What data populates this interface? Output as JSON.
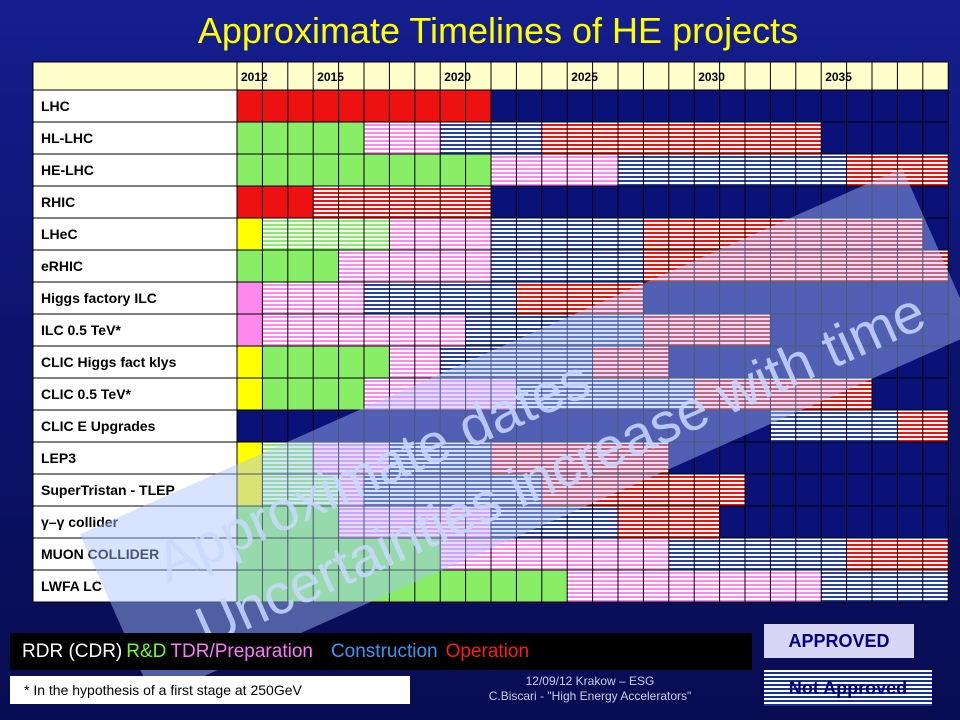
{
  "page": {
    "title": "Approximate Timelines of HE projects",
    "watermark_lines": [
      "Approximate dates",
      "Uncertainties increase with time"
    ],
    "footer_lines": [
      "12/09/12 Krakow – ESG",
      "C.Biscari - \"High Energy Accelerators\""
    ],
    "footnote": "* In the hypothesis of a first stage at 250GeV",
    "badges": {
      "approved": "APPROVED",
      "not_approved": "Not Approved"
    }
  },
  "legend": [
    {
      "label": "RDR (CDR)",
      "color": "#ffffff"
    },
    {
      "label": "R&D",
      "color": "#66ff33"
    },
    {
      "label": "TDR/Preparation",
      "color": "#ff77ff"
    },
    {
      "label": "Construction",
      "color": "#3399ff"
    },
    {
      "label": "Operation",
      "color": "#ff1a1a"
    }
  ],
  "chart_data": {
    "type": "table",
    "year_labels": [
      "2012",
      "2015",
      "2020",
      "2025",
      "2030",
      "2035"
    ],
    "year_start": 2012,
    "year_end": 2039,
    "phase_colors": {
      "cdr": "#ffff00",
      "rd": "#88ee66",
      "tdr": "#ff88ee",
      "construction": "#4455cc",
      "operation": "#ee1111"
    },
    "rows": [
      {
        "label": "LHC",
        "segments": [
          {
            "phase": "operation",
            "start": 2012,
            "end": 2022,
            "approved": true
          }
        ]
      },
      {
        "label": "HL-LHC",
        "segments": [
          {
            "phase": "rd",
            "start": 2012,
            "end": 2017,
            "approved": true
          },
          {
            "phase": "tdr",
            "start": 2017,
            "end": 2020,
            "approved": false
          },
          {
            "phase": "construction",
            "start": 2020,
            "end": 2024,
            "approved": false
          },
          {
            "phase": "operation",
            "start": 2024,
            "end": 2035,
            "approved": false
          }
        ]
      },
      {
        "label": "HE-LHC",
        "segments": [
          {
            "phase": "rd",
            "start": 2012,
            "end": 2022,
            "approved": true
          },
          {
            "phase": "tdr",
            "start": 2022,
            "end": 2027,
            "approved": false
          },
          {
            "phase": "construction",
            "start": 2027,
            "end": 2036,
            "approved": false
          },
          {
            "phase": "operation",
            "start": 2036,
            "end": 2040,
            "approved": false
          }
        ]
      },
      {
        "label": "RHIC",
        "segments": [
          {
            "phase": "operation",
            "start": 2012,
            "end": 2015,
            "approved": true
          },
          {
            "phase": "operation",
            "start": 2015,
            "end": 2022,
            "approved": false
          }
        ]
      },
      {
        "label": "LHeC",
        "segments": [
          {
            "phase": "cdr",
            "start": 2012,
            "end": 2013,
            "approved": true
          },
          {
            "phase": "rd",
            "start": 2013,
            "end": 2018,
            "approved": false
          },
          {
            "phase": "tdr",
            "start": 2018,
            "end": 2022,
            "approved": false
          },
          {
            "phase": "construction",
            "start": 2022,
            "end": 2028,
            "approved": false
          },
          {
            "phase": "operation",
            "start": 2028,
            "end": 2039,
            "approved": false
          }
        ]
      },
      {
        "label": "eRHIC",
        "segments": [
          {
            "phase": "rd",
            "start": 2012,
            "end": 2016,
            "approved": true
          },
          {
            "phase": "tdr",
            "start": 2016,
            "end": 2022,
            "approved": false
          },
          {
            "phase": "construction",
            "start": 2022,
            "end": 2028,
            "approved": false
          },
          {
            "phase": "operation",
            "start": 2028,
            "end": 2040,
            "approved": false
          }
        ]
      },
      {
        "label": "Higgs factory ILC",
        "segments": [
          {
            "phase": "tdr",
            "start": 2012,
            "end": 2013,
            "approved": true
          },
          {
            "phase": "tdr",
            "start": 2013,
            "end": 2017,
            "approved": false
          },
          {
            "phase": "construction",
            "start": 2017,
            "end": 2023,
            "approved": false
          },
          {
            "phase": "operation",
            "start": 2023,
            "end": 2028,
            "approved": false
          }
        ]
      },
      {
        "label": "ILC 0.5 TeV*",
        "segments": [
          {
            "phase": "tdr",
            "start": 2012,
            "end": 2013,
            "approved": true
          },
          {
            "phase": "tdr",
            "start": 2013,
            "end": 2021,
            "approved": false
          },
          {
            "phase": "construction",
            "start": 2021,
            "end": 2028,
            "approved": false
          },
          {
            "phase": "operation",
            "start": 2028,
            "end": 2033,
            "approved": false
          }
        ]
      },
      {
        "label": "CLIC Higgs fact klys",
        "segments": [
          {
            "phase": "cdr",
            "start": 2012,
            "end": 2013,
            "approved": true
          },
          {
            "phase": "rd",
            "start": 2013,
            "end": 2018,
            "approved": true
          },
          {
            "phase": "tdr",
            "start": 2018,
            "end": 2020,
            "approved": false
          },
          {
            "phase": "construction",
            "start": 2020,
            "end": 2026,
            "approved": false
          },
          {
            "phase": "operation",
            "start": 2026,
            "end": 2029,
            "approved": false
          }
        ]
      },
      {
        "label": "CLIC 0.5 TeV*",
        "segments": [
          {
            "phase": "cdr",
            "start": 2012,
            "end": 2013,
            "approved": true
          },
          {
            "phase": "rd",
            "start": 2013,
            "end": 2017,
            "approved": true
          },
          {
            "phase": "tdr",
            "start": 2017,
            "end": 2023,
            "approved": false
          },
          {
            "phase": "construction",
            "start": 2023,
            "end": 2030,
            "approved": false
          },
          {
            "phase": "operation",
            "start": 2030,
            "end": 2037,
            "approved": false
          }
        ]
      },
      {
        "label": "CLIC E Upgrades",
        "segments": [
          {
            "phase": "construction",
            "start": 2033,
            "end": 2038,
            "approved": false
          },
          {
            "phase": "operation",
            "start": 2038,
            "end": 2040,
            "approved": false
          }
        ]
      },
      {
        "label": "LEP3",
        "segments": [
          {
            "phase": "cdr",
            "start": 2012,
            "end": 2013,
            "approved": true
          },
          {
            "phase": "rd",
            "start": 2013,
            "end": 2015,
            "approved": false
          },
          {
            "phase": "tdr",
            "start": 2015,
            "end": 2018,
            "approved": false
          },
          {
            "phase": "construction",
            "start": 2018,
            "end": 2022,
            "approved": false
          },
          {
            "phase": "operation",
            "start": 2022,
            "end": 2029,
            "approved": false
          }
        ]
      },
      {
        "label": "SuperTristan - TLEP",
        "segments": [
          {
            "phase": "cdr",
            "start": 2012,
            "end": 2013,
            "approved": true
          },
          {
            "phase": "rd",
            "start": 2013,
            "end": 2016,
            "approved": false
          },
          {
            "phase": "tdr",
            "start": 2016,
            "end": 2017,
            "approved": false
          },
          {
            "phase": "construction",
            "start": 2017,
            "end": 2024,
            "approved": false
          },
          {
            "phase": "operation",
            "start": 2024,
            "end": 2032,
            "approved": false
          }
        ]
      },
      {
        "label": "γ–γ collider",
        "segments": [
          {
            "phase": "rd",
            "start": 2012,
            "end": 2016,
            "approved": true
          },
          {
            "phase": "tdr",
            "start": 2016,
            "end": 2022,
            "approved": false
          },
          {
            "phase": "construction",
            "start": 2022,
            "end": 2027,
            "approved": false
          },
          {
            "phase": "operation",
            "start": 2027,
            "end": 2031,
            "approved": false
          }
        ]
      },
      {
        "label": "MUON COLLIDER",
        "segments": [
          {
            "phase": "rd",
            "start": 2012,
            "end": 2020,
            "approved": true
          },
          {
            "phase": "tdr",
            "start": 2020,
            "end": 2029,
            "approved": false
          },
          {
            "phase": "construction",
            "start": 2029,
            "end": 2036,
            "approved": false
          },
          {
            "phase": "operation",
            "start": 2036,
            "end": 2040,
            "approved": false
          }
        ]
      },
      {
        "label": "LWFA LC",
        "segments": [
          {
            "phase": "rd",
            "start": 2012,
            "end": 2025,
            "approved": true
          },
          {
            "phase": "tdr",
            "start": 2025,
            "end": 2035,
            "approved": false
          },
          {
            "phase": "construction",
            "start": 2035,
            "end": 2040,
            "approved": false
          }
        ]
      }
    ]
  }
}
